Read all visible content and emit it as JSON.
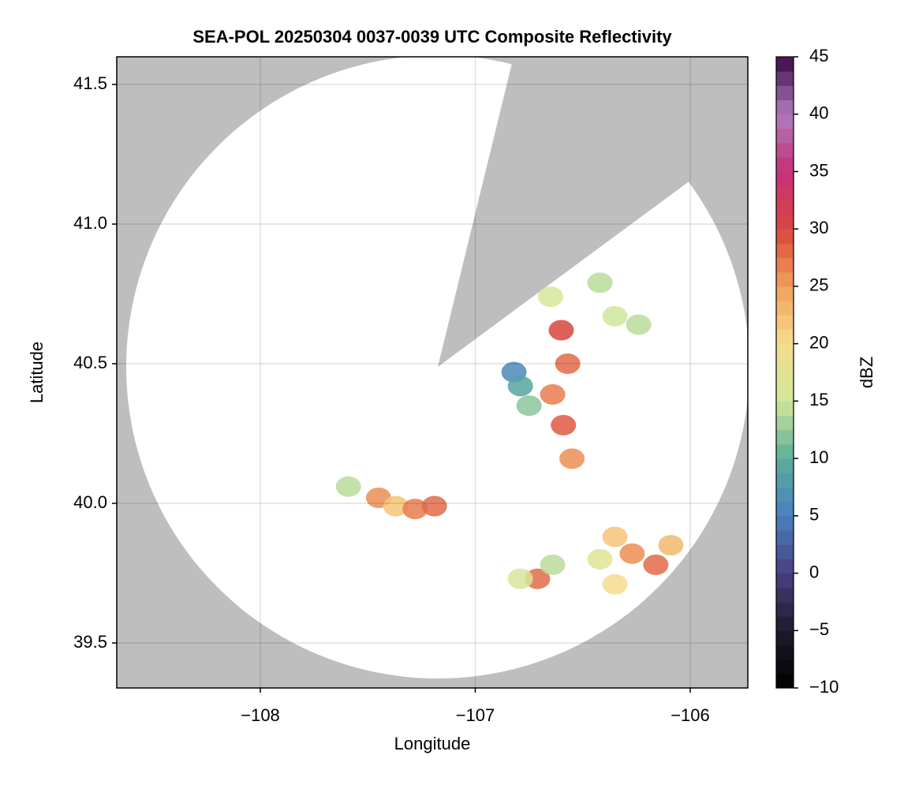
{
  "chart_data": {
    "type": "radar",
    "title": "SEA-POL 20250304 0037-0039 UTC Composite Reflectivity",
    "x_label": "Longitude",
    "y_label": "Latitude",
    "colorbar_label": "dBZ",
    "xlim": [
      -108.668,
      -105.732
    ],
    "ylim": [
      39.339,
      41.599
    ],
    "xticks": [
      {
        "value": -108,
        "label": "−108"
      },
      {
        "value": -107,
        "label": "−107"
      },
      {
        "value": -106,
        "label": "−106"
      }
    ],
    "yticks": [
      {
        "value": 39.5,
        "label": "39.5"
      },
      {
        "value": 40.0,
        "label": "40.0"
      },
      {
        "value": 40.5,
        "label": "40.5"
      },
      {
        "value": 41.0,
        "label": "41.0"
      },
      {
        "value": 41.5,
        "label": "41.5"
      }
    ],
    "grid": true,
    "clim": [
      -10,
      45
    ],
    "cticks": [
      {
        "value": -10,
        "label": "−10"
      },
      {
        "value": -5,
        "label": "−5"
      },
      0,
      5,
      10,
      15,
      20,
      25,
      30,
      35,
      40,
      45
    ],
    "colormap": [
      "#000000",
      "#1e1a2c",
      "#4a3f80",
      "#4a7fc0",
      "#5aae9a",
      "#cfe79a",
      "#f6dc8e",
      "#f0a05a",
      "#d9473d",
      "#c5307a",
      "#b07bbd",
      "#3b0a48"
    ],
    "series": [
      {
        "x": [
          -106.6,
          -106.57,
          -106.65,
          -106.35,
          -106.24,
          -106.42,
          -106.64,
          -106.59,
          -106.55,
          -106.82,
          -106.79,
          -106.75,
          -107.45,
          -107.37,
          -107.28,
          -107.19,
          -107.59,
          -106.35,
          -106.27,
          -106.16,
          -106.42,
          -106.09,
          -106.35,
          -106.71,
          -106.79,
          -106.64
        ],
        "y": [
          40.62,
          40.5,
          40.74,
          40.67,
          40.64,
          40.79,
          40.39,
          40.28,
          40.16,
          40.47,
          40.42,
          40.35,
          40.02,
          39.99,
          39.98,
          39.99,
          40.06,
          39.88,
          39.82,
          39.78,
          39.8,
          39.85,
          39.71,
          39.73,
          39.73,
          39.78
        ],
        "values": [
          30,
          28,
          16,
          15,
          14,
          14,
          27,
          29,
          26,
          6,
          9,
          12,
          26,
          22,
          27,
          28,
          14,
          22,
          26,
          28,
          17,
          23,
          20,
          28,
          16,
          14
        ]
      }
    ]
  }
}
